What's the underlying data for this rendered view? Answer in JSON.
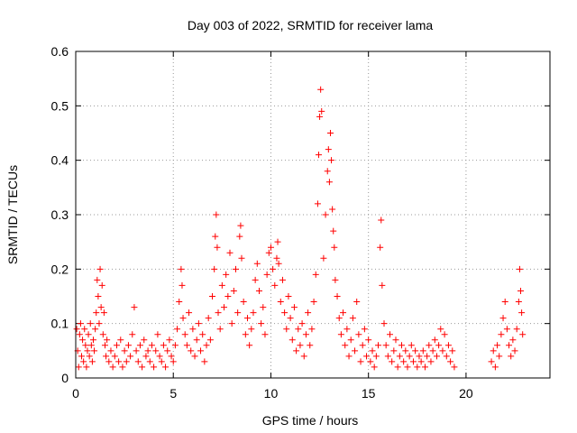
{
  "chart_data": {
    "type": "scatter",
    "title": "Day 003 of 2022, SRMTID for receiver lama",
    "xlabel": "GPS time / hours",
    "ylabel": "SRMTID / TECUs",
    "xlim": [
      0,
      24.3
    ],
    "ylim": [
      0,
      0.6
    ],
    "xticks": [
      0,
      5,
      10,
      15,
      20
    ],
    "xtick_labels": [
      "0",
      "5",
      "10",
      "15",
      "20"
    ],
    "yticks": [
      0,
      0.1,
      0.2,
      0.3,
      0.4,
      0.5,
      0.6
    ],
    "ytick_labels": [
      "0",
      "0.1",
      "0.2",
      "0.3",
      "0.4",
      "0.5",
      "0.6"
    ],
    "grid": true,
    "marker": "+",
    "color": "#ff0000",
    "series": [
      {
        "name": "SRMTID",
        "points": [
          [
            0.05,
            0.09
          ],
          [
            0.1,
            0.05
          ],
          [
            0.15,
            0.02
          ],
          [
            0.2,
            0.08
          ],
          [
            0.25,
            0.1
          ],
          [
            0.3,
            0.04
          ],
          [
            0.35,
            0.07
          ],
          [
            0.4,
            0.03
          ],
          [
            0.45,
            0.09
          ],
          [
            0.5,
            0.06
          ],
          [
            0.55,
            0.02
          ],
          [
            0.6,
            0.05
          ],
          [
            0.65,
            0.08
          ],
          [
            0.7,
            0.04
          ],
          [
            0.75,
            0.1
          ],
          [
            0.8,
            0.06
          ],
          [
            0.85,
            0.03
          ],
          [
            0.9,
            0.07
          ],
          [
            0.95,
            0.05
          ],
          [
            1.0,
            0.09
          ],
          [
            1.05,
            0.12
          ],
          [
            1.1,
            0.18
          ],
          [
            1.15,
            0.15
          ],
          [
            1.2,
            0.1
          ],
          [
            1.25,
            0.2
          ],
          [
            1.3,
            0.13
          ],
          [
            1.35,
            0.17
          ],
          [
            1.4,
            0.08
          ],
          [
            1.45,
            0.12
          ],
          [
            1.5,
            0.06
          ],
          [
            1.55,
            0.04
          ],
          [
            1.6,
            0.07
          ],
          [
            1.7,
            0.03
          ],
          [
            1.8,
            0.05
          ],
          [
            1.9,
            0.02
          ],
          [
            2.0,
            0.04
          ],
          [
            2.1,
            0.06
          ],
          [
            2.2,
            0.03
          ],
          [
            2.3,
            0.07
          ],
          [
            2.4,
            0.02
          ],
          [
            2.5,
            0.05
          ],
          [
            2.6,
            0.03
          ],
          [
            2.7,
            0.06
          ],
          [
            2.8,
            0.04
          ],
          [
            2.9,
            0.08
          ],
          [
            3.0,
            0.13
          ],
          [
            3.1,
            0.05
          ],
          [
            3.2,
            0.03
          ],
          [
            3.3,
            0.06
          ],
          [
            3.4,
            0.02
          ],
          [
            3.5,
            0.07
          ],
          [
            3.6,
            0.04
          ],
          [
            3.7,
            0.05
          ],
          [
            3.8,
            0.03
          ],
          [
            3.9,
            0.06
          ],
          [
            4.0,
            0.02
          ],
          [
            4.1,
            0.05
          ],
          [
            4.2,
            0.08
          ],
          [
            4.3,
            0.04
          ],
          [
            4.4,
            0.03
          ],
          [
            4.5,
            0.06
          ],
          [
            4.6,
            0.02
          ],
          [
            4.7,
            0.05
          ],
          [
            4.8,
            0.07
          ],
          [
            4.9,
            0.04
          ],
          [
            5.0,
            0.03
          ],
          [
            5.1,
            0.06
          ],
          [
            5.2,
            0.09
          ],
          [
            5.3,
            0.14
          ],
          [
            5.4,
            0.2
          ],
          [
            5.45,
            0.17
          ],
          [
            5.5,
            0.11
          ],
          [
            5.6,
            0.08
          ],
          [
            5.7,
            0.06
          ],
          [
            5.8,
            0.12
          ],
          [
            5.9,
            0.05
          ],
          [
            6.0,
            0.09
          ],
          [
            6.1,
            0.04
          ],
          [
            6.2,
            0.07
          ],
          [
            6.3,
            0.1
          ],
          [
            6.4,
            0.05
          ],
          [
            6.5,
            0.08
          ],
          [
            6.6,
            0.03
          ],
          [
            6.7,
            0.06
          ],
          [
            6.8,
            0.11
          ],
          [
            6.9,
            0.07
          ],
          [
            7.0,
            0.15
          ],
          [
            7.1,
            0.2
          ],
          [
            7.15,
            0.26
          ],
          [
            7.2,
            0.3
          ],
          [
            7.25,
            0.24
          ],
          [
            7.3,
            0.12
          ],
          [
            7.4,
            0.09
          ],
          [
            7.5,
            0.17
          ],
          [
            7.6,
            0.13
          ],
          [
            7.7,
            0.19
          ],
          [
            7.8,
            0.15
          ],
          [
            7.9,
            0.23
          ],
          [
            8.0,
            0.1
          ],
          [
            8.1,
            0.16
          ],
          [
            8.2,
            0.2
          ],
          [
            8.3,
            0.12
          ],
          [
            8.4,
            0.26
          ],
          [
            8.45,
            0.28
          ],
          [
            8.5,
            0.22
          ],
          [
            8.6,
            0.14
          ],
          [
            8.7,
            0.08
          ],
          [
            8.8,
            0.11
          ],
          [
            8.9,
            0.06
          ],
          [
            9.0,
            0.09
          ],
          [
            9.1,
            0.12
          ],
          [
            9.2,
            0.18
          ],
          [
            9.3,
            0.21
          ],
          [
            9.4,
            0.16
          ],
          [
            9.5,
            0.1
          ],
          [
            9.6,
            0.13
          ],
          [
            9.7,
            0.08
          ],
          [
            9.8,
            0.19
          ],
          [
            9.9,
            0.23
          ],
          [
            10.0,
            0.24
          ],
          [
            10.1,
            0.2
          ],
          [
            10.2,
            0.17
          ],
          [
            10.3,
            0.22
          ],
          [
            10.35,
            0.25
          ],
          [
            10.4,
            0.21
          ],
          [
            10.5,
            0.14
          ],
          [
            10.6,
            0.18
          ],
          [
            10.7,
            0.12
          ],
          [
            10.8,
            0.09
          ],
          [
            10.9,
            0.15
          ],
          [
            11.0,
            0.11
          ],
          [
            11.1,
            0.07
          ],
          [
            11.2,
            0.13
          ],
          [
            11.3,
            0.05
          ],
          [
            11.4,
            0.09
          ],
          [
            11.5,
            0.06
          ],
          [
            11.6,
            0.1
          ],
          [
            11.7,
            0.04
          ],
          [
            11.8,
            0.08
          ],
          [
            11.9,
            0.12
          ],
          [
            12.0,
            0.06
          ],
          [
            12.1,
            0.09
          ],
          [
            12.2,
            0.14
          ],
          [
            12.3,
            0.19
          ],
          [
            12.4,
            0.32
          ],
          [
            12.45,
            0.41
          ],
          [
            12.5,
            0.48
          ],
          [
            12.55,
            0.53
          ],
          [
            12.6,
            0.49
          ],
          [
            12.7,
            0.22
          ],
          [
            12.8,
            0.3
          ],
          [
            12.9,
            0.38
          ],
          [
            12.95,
            0.42
          ],
          [
            13.0,
            0.36
          ],
          [
            13.05,
            0.45
          ],
          [
            13.1,
            0.4
          ],
          [
            13.15,
            0.31
          ],
          [
            13.2,
            0.27
          ],
          [
            13.25,
            0.24
          ],
          [
            13.3,
            0.18
          ],
          [
            13.4,
            0.15
          ],
          [
            13.5,
            0.11
          ],
          [
            13.6,
            0.08
          ],
          [
            13.7,
            0.12
          ],
          [
            13.8,
            0.06
          ],
          [
            13.9,
            0.09
          ],
          [
            14.0,
            0.04
          ],
          [
            14.1,
            0.07
          ],
          [
            14.2,
            0.11
          ],
          [
            14.3,
            0.05
          ],
          [
            14.4,
            0.14
          ],
          [
            14.5,
            0.08
          ],
          [
            14.6,
            0.03
          ],
          [
            14.7,
            0.06
          ],
          [
            14.8,
            0.09
          ],
          [
            14.9,
            0.04
          ],
          [
            15.0,
            0.07
          ],
          [
            15.1,
            0.03
          ],
          [
            15.2,
            0.05
          ],
          [
            15.3,
            0.02
          ],
          [
            15.4,
            0.04
          ],
          [
            15.5,
            0.06
          ],
          [
            15.6,
            0.24
          ],
          [
            15.65,
            0.29
          ],
          [
            15.7,
            0.17
          ],
          [
            15.8,
            0.1
          ],
          [
            15.9,
            0.06
          ],
          [
            16.0,
            0.04
          ],
          [
            16.1,
            0.08
          ],
          [
            16.2,
            0.03
          ],
          [
            16.3,
            0.05
          ],
          [
            16.4,
            0.07
          ],
          [
            16.5,
            0.02
          ],
          [
            16.6,
            0.04
          ],
          [
            16.7,
            0.06
          ],
          [
            16.8,
            0.03
          ],
          [
            16.9,
            0.05
          ],
          [
            17.0,
            0.02
          ],
          [
            17.1,
            0.04
          ],
          [
            17.2,
            0.06
          ],
          [
            17.3,
            0.03
          ],
          [
            17.4,
            0.05
          ],
          [
            17.5,
            0.02
          ],
          [
            17.6,
            0.04
          ],
          [
            17.7,
            0.03
          ],
          [
            17.8,
            0.05
          ],
          [
            17.9,
            0.02
          ],
          [
            18.0,
            0.04
          ],
          [
            18.1,
            0.06
          ],
          [
            18.2,
            0.03
          ],
          [
            18.3,
            0.05
          ],
          [
            18.4,
            0.07
          ],
          [
            18.5,
            0.04
          ],
          [
            18.6,
            0.06
          ],
          [
            18.7,
            0.09
          ],
          [
            18.8,
            0.05
          ],
          [
            18.9,
            0.08
          ],
          [
            19.0,
            0.04
          ],
          [
            19.1,
            0.06
          ],
          [
            19.2,
            0.03
          ],
          [
            19.3,
            0.05
          ],
          [
            19.4,
            0.02
          ],
          [
            21.3,
            0.03
          ],
          [
            21.4,
            0.05
          ],
          [
            21.5,
            0.02
          ],
          [
            21.6,
            0.06
          ],
          [
            21.7,
            0.04
          ],
          [
            21.8,
            0.08
          ],
          [
            21.9,
            0.11
          ],
          [
            22.0,
            0.14
          ],
          [
            22.1,
            0.09
          ],
          [
            22.2,
            0.06
          ],
          [
            22.3,
            0.04
          ],
          [
            22.4,
            0.07
          ],
          [
            22.5,
            0.05
          ],
          [
            22.6,
            0.09
          ],
          [
            22.7,
            0.14
          ],
          [
            22.75,
            0.2
          ],
          [
            22.8,
            0.16
          ],
          [
            22.85,
            0.12
          ],
          [
            22.9,
            0.08
          ]
        ]
      }
    ]
  }
}
